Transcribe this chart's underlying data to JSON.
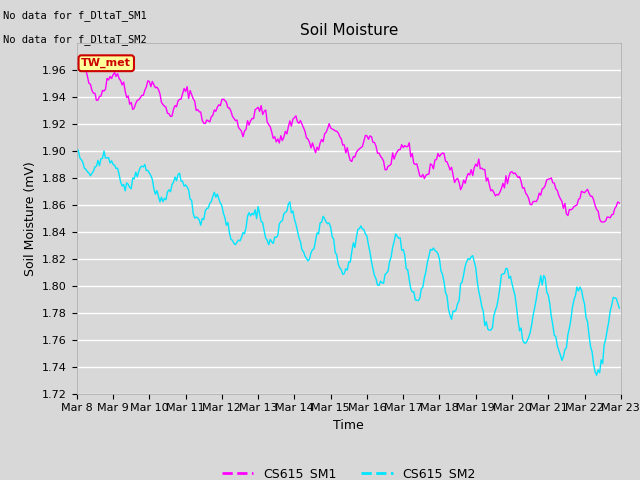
{
  "title": "Soil Moisture",
  "xlabel": "Time",
  "ylabel": "Soil Moisture (mV)",
  "ylim": [
    1.72,
    1.98
  ],
  "yticks": [
    1.72,
    1.74,
    1.76,
    1.78,
    1.8,
    1.82,
    1.84,
    1.86,
    1.88,
    1.9,
    1.92,
    1.94,
    1.96
  ],
  "text_no_data": [
    "No data for f_DltaT_SM1",
    "No data for f_DltaT_SM2"
  ],
  "legend_labels": [
    "CS615_SM1",
    "CS615_SM2"
  ],
  "line_color_sm1": "#ff00ff",
  "line_color_sm2": "#00e5ff",
  "annotation_text": "TW_met",
  "annotation_facecolor": "#ffff99",
  "annotation_edgecolor": "#cc0000",
  "annotation_textcolor": "#cc0000",
  "bg_color": "#d8d8d8",
  "axes_bg": "#d8d8d8",
  "grid_color": "#ffffff",
  "title_fontsize": 11,
  "tick_label_fontsize": 8,
  "axis_label_fontsize": 9
}
